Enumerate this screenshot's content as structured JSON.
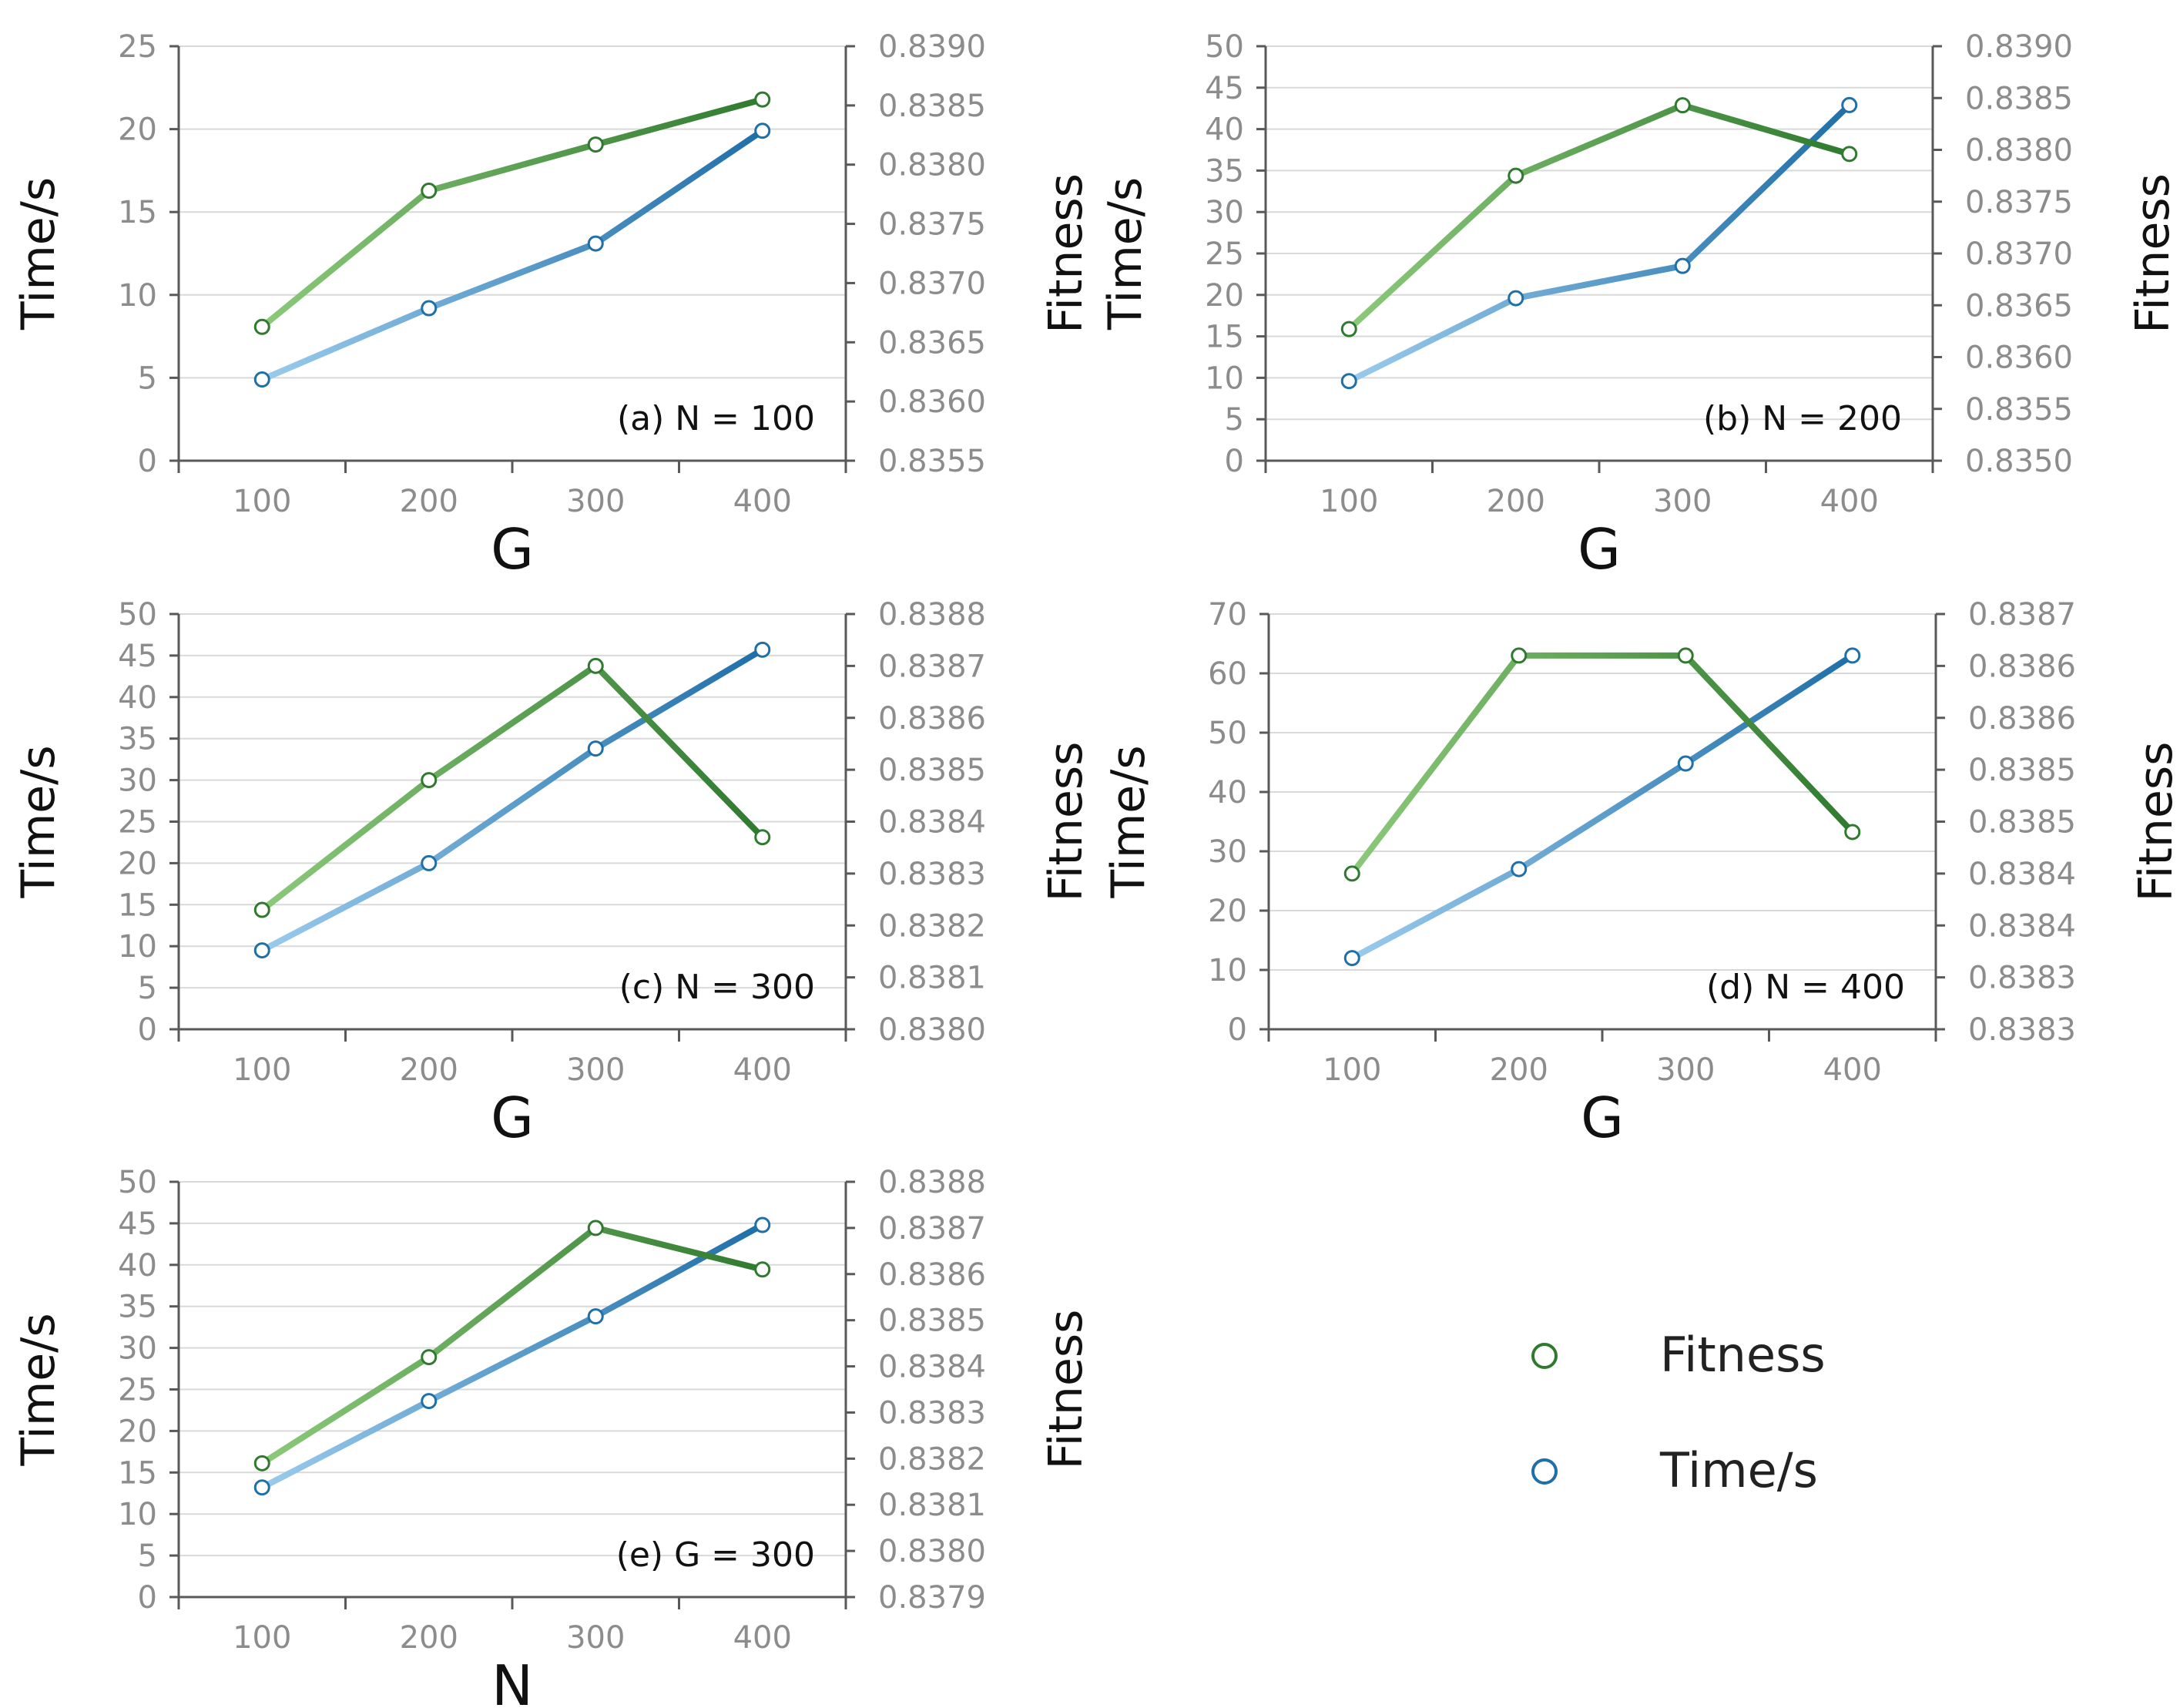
{
  "colors": {
    "fitness_light": "#8CC97A",
    "fitness_dark": "#2F7A2F",
    "time_light": "#9ACBEC",
    "time_dark": "#1F6FA8",
    "grid": "#D9D9D9",
    "axis": "#595959",
    "tick_text": "#8C8C8C",
    "label_text": "#111111"
  },
  "legend": {
    "fitness_label": "Fitness",
    "time_label": "Time/s"
  },
  "chart_data": [
    {
      "type": "line",
      "annotation": "(a) N = 100",
      "xlabel": "G",
      "ylabel": "Time/s",
      "y2label": "Fitness",
      "categories": [
        "100",
        "200",
        "300",
        "400"
      ],
      "ylim": [
        0,
        25
      ],
      "yticks": [
        "0",
        "5",
        "10",
        "15",
        "20",
        "25"
      ],
      "y2lim": [
        0.8355,
        0.839
      ],
      "y2ticks": [
        "0.8355",
        "0.8360",
        "0.8365",
        "0.8370",
        "0.8375",
        "0.8380",
        "0.8385",
        "0.8390"
      ],
      "series": [
        {
          "name": "Time/s",
          "axis": "left",
          "values": [
            4.9,
            9.2,
            13.1,
            19.9
          ]
        },
        {
          "name": "Fitness",
          "axis": "right",
          "values": [
            0.83663,
            0.83778,
            0.83817,
            0.83855
          ]
        }
      ]
    },
    {
      "type": "line",
      "annotation": "(b)  N = 200",
      "xlabel": "G",
      "ylabel": "Time/s",
      "y2label": "Fitness",
      "categories": [
        "100",
        "200",
        "300",
        "400"
      ],
      "ylim": [
        0,
        50
      ],
      "yticks": [
        "0",
        "5",
        "10",
        "15",
        "20",
        "25",
        "30",
        "35",
        "40",
        "45",
        "50"
      ],
      "y2lim": [
        0.835,
        0.839
      ],
      "y2ticks": [
        "0.8350",
        "0.8355",
        "0.8360",
        "0.8365",
        "0.8370",
        "0.8375",
        "0.8380",
        "0.8385",
        "0.8390"
      ],
      "series": [
        {
          "name": "Time/s",
          "axis": "left",
          "values": [
            9.6,
            19.6,
            23.5,
            42.9
          ]
        },
        {
          "name": "Fitness",
          "axis": "right",
          "values": [
            0.83627,
            0.83775,
            0.83843,
            0.83796
          ]
        }
      ]
    },
    {
      "type": "line",
      "annotation": "(c) N = 300",
      "xlabel": "G",
      "ylabel": "Time/s",
      "y2label": "Fitness",
      "categories": [
        "100",
        "200",
        "300",
        "400"
      ],
      "ylim": [
        0,
        50
      ],
      "yticks": [
        "0",
        "5",
        "10",
        "15",
        "20",
        "25",
        "30",
        "35",
        "40",
        "45",
        "50"
      ],
      "y2lim": [
        0.838,
        0.8388
      ],
      "y2ticks": [
        "0.8380",
        "0.8381",
        "0.8382",
        "0.8383",
        "0.8384",
        "0.8385",
        "0.8386",
        "0.8387",
        "0.8388"
      ],
      "series": [
        {
          "name": "Time/s",
          "axis": "left",
          "values": [
            9.5,
            20.0,
            33.8,
            45.7
          ]
        },
        {
          "name": "Fitness",
          "axis": "right",
          "values": [
            0.83823,
            0.83848,
            0.8387,
            0.83837
          ]
        }
      ]
    },
    {
      "type": "line",
      "annotation": "(d) N = 400",
      "xlabel": "G",
      "ylabel": "Time/s",
      "y2label": "Fitness",
      "categories": [
        "100",
        "200",
        "300",
        "400"
      ],
      "ylim": [
        0,
        70
      ],
      "yticks": [
        "0",
        "10",
        "20",
        "30",
        "40",
        "50",
        "60",
        "70"
      ],
      "y2lim": [
        0.83825,
        0.83865
      ],
      "y2ticks": [
        "0.8383",
        "0.8383",
        "0.8384",
        "0.8384",
        "0.8385",
        "0.8385",
        "0.8386",
        "0.8386",
        "0.8387"
      ],
      "series": [
        {
          "name": "Time/s",
          "axis": "left",
          "values": [
            12.0,
            27.0,
            44.8,
            63.0
          ]
        },
        {
          "name": "Fitness",
          "axis": "right",
          "values": [
            0.8384,
            0.83861,
            0.83861,
            0.83844
          ]
        }
      ]
    },
    {
      "type": "line",
      "annotation": "(e) G = 300",
      "xlabel": "N",
      "ylabel": "Time/s",
      "y2label": "Fitness",
      "categories": [
        "100",
        "200",
        "300",
        "400"
      ],
      "ylim": [
        0,
        50
      ],
      "yticks": [
        "0",
        "5",
        "10",
        "15",
        "20",
        "25",
        "30",
        "35",
        "40",
        "45",
        "50"
      ],
      "y2lim": [
        0.8379,
        0.8388
      ],
      "y2ticks": [
        "0.8379",
        "0.8380",
        "0.8381",
        "0.8382",
        "0.8383",
        "0.8384",
        "0.8385",
        "0.8386",
        "0.8387",
        "0.8388"
      ],
      "series": [
        {
          "name": "Time/s",
          "axis": "left",
          "values": [
            13.2,
            23.6,
            33.8,
            44.8
          ]
        },
        {
          "name": "Fitness",
          "axis": "right",
          "values": [
            0.83819,
            0.83842,
            0.8387,
            0.83861
          ]
        }
      ]
    }
  ]
}
